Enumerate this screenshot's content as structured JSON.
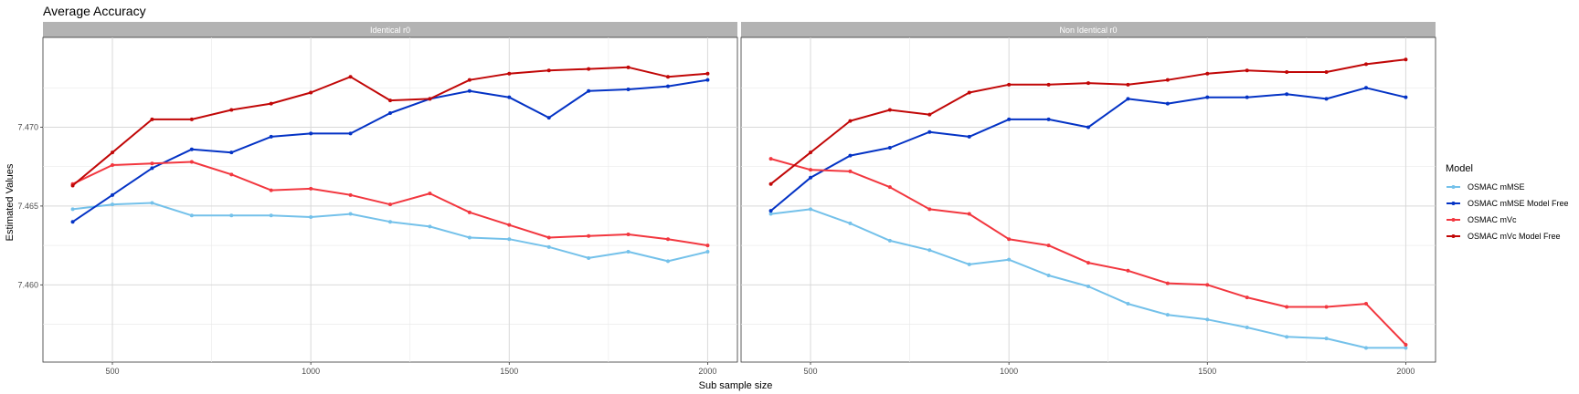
{
  "chart_data": {
    "type": "line",
    "title": "Average Accuracy",
    "xlabel": "Sub sample size",
    "ylabel": "Estimated Values",
    "x_ticks": [
      500,
      1000,
      1500,
      2000
    ],
    "y_ticks": [
      7.46,
      7.465,
      7.47
    ],
    "y_tick_labels": [
      "7.460",
      "7.465",
      "7.470"
    ],
    "xlim": [
      325,
      2075
    ],
    "ylim": [
      7.4551,
      7.4757
    ],
    "grid": true,
    "legend": {
      "title": "Model",
      "position": "right",
      "entries": [
        "OSMAC mMSE",
        "OSMAC mMSE Model Free",
        "OSMAC mVc",
        "OSMAC mVc Model Free"
      ]
    },
    "colors": {
      "OSMAC mMSE": "#74c1ea",
      "OSMAC mMSE Model Free": "#0433c5",
      "OSMAC mVc": "#f2373f",
      "OSMAC mVc Model Free": "#c10707"
    },
    "x": [
      400,
      500,
      600,
      700,
      800,
      900,
      1000,
      1100,
      1200,
      1300,
      1400,
      1500,
      1600,
      1700,
      1800,
      1900,
      2000
    ],
    "panels": [
      {
        "label": "Identical r0",
        "series": [
          {
            "name": "OSMAC mMSE",
            "values": [
              7.4648,
              7.4651,
              7.4652,
              7.4644,
              7.4644,
              7.4644,
              7.4643,
              7.4645,
              7.464,
              7.4637,
              7.463,
              7.4629,
              7.4624,
              7.4617,
              7.4621,
              7.4615,
              7.4621
            ]
          },
          {
            "name": "OSMAC mMSE Model Free",
            "values": [
              7.464,
              7.4657,
              7.4674,
              7.4686,
              7.4684,
              7.4694,
              7.4696,
              7.4696,
              7.4709,
              7.4718,
              7.4723,
              7.4719,
              7.4706,
              7.4723,
              7.4724,
              7.4726,
              7.473
            ]
          },
          {
            "name": "OSMAC mVc",
            "values": [
              7.4664,
              7.4676,
              7.4677,
              7.4678,
              7.467,
              7.466,
              7.4661,
              7.4657,
              7.4651,
              7.4658,
              7.4646,
              7.4638,
              7.463,
              7.4631,
              7.4632,
              7.4629,
              7.4625
            ]
          },
          {
            "name": "OSMAC mVc Model Free",
            "values": [
              7.4663,
              7.4684,
              7.4705,
              7.4705,
              7.4711,
              7.4715,
              7.4722,
              7.4732,
              7.4717,
              7.4718,
              7.473,
              7.4734,
              7.4736,
              7.4737,
              7.4738,
              7.4732,
              7.4734
            ]
          }
        ]
      },
      {
        "label": "Non Identical r0",
        "series": [
          {
            "name": "OSMAC mMSE",
            "values": [
              7.4645,
              7.4648,
              7.4639,
              7.4628,
              7.4622,
              7.4613,
              7.4616,
              7.4606,
              7.4599,
              7.4588,
              7.4581,
              7.4578,
              7.4573,
              7.4567,
              7.4566,
              7.456,
              7.456
            ]
          },
          {
            "name": "OSMAC mMSE Model Free",
            "values": [
              7.4647,
              7.4668,
              7.4682,
              7.4687,
              7.4697,
              7.4694,
              7.4705,
              7.4705,
              7.47,
              7.4718,
              7.4715,
              7.4719,
              7.4719,
              7.4721,
              7.4718,
              7.4725,
              7.4719
            ]
          },
          {
            "name": "OSMAC mVc",
            "values": [
              7.468,
              7.4673,
              7.4672,
              7.4662,
              7.4648,
              7.4645,
              7.4629,
              7.4625,
              7.4614,
              7.4609,
              7.4601,
              7.46,
              7.4592,
              7.4586,
              7.4586,
              7.4588,
              7.4562
            ]
          },
          {
            "name": "OSMAC mVc Model Free",
            "values": [
              7.4664,
              7.4684,
              7.4704,
              7.4711,
              7.4708,
              7.4722,
              7.4727,
              7.4727,
              7.4728,
              7.4727,
              7.473,
              7.4734,
              7.4736,
              7.4735,
              7.4735,
              7.474,
              7.4743
            ]
          }
        ]
      }
    ]
  }
}
